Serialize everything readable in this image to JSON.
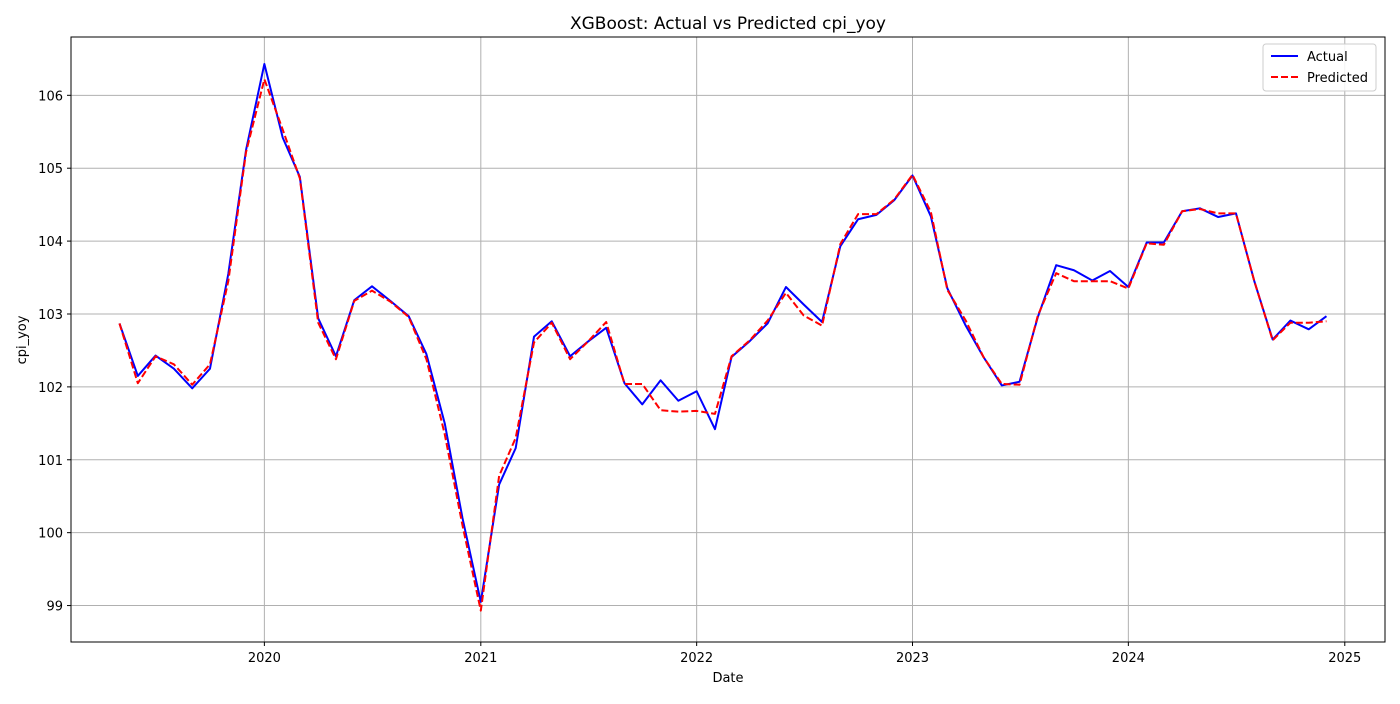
{
  "chart_data": {
    "type": "line",
    "title": "XGBoost: Actual vs Predicted cpi_yoy",
    "xlabel": "Date",
    "ylabel": "cpi_yoy",
    "x_tick_labels": [
      "2020",
      "2021",
      "2022",
      "2023",
      "2024",
      "2025"
    ],
    "y_tick_labels": [
      "99",
      "100",
      "101",
      "102",
      "103",
      "104",
      "105",
      "106"
    ],
    "xlim": [
      "2019-02-08",
      "2025-03-10"
    ],
    "ylim": [
      98.5,
      106.8
    ],
    "grid": true,
    "legend_position": "top-right",
    "x": [
      "2019-05-01",
      "2019-06-01",
      "2019-07-01",
      "2019-08-01",
      "2019-09-01",
      "2019-10-01",
      "2019-11-01",
      "2019-12-01",
      "2020-01-01",
      "2020-02-01",
      "2020-03-01",
      "2020-04-01",
      "2020-05-01",
      "2020-06-01",
      "2020-07-01",
      "2020-08-01",
      "2020-09-01",
      "2020-10-01",
      "2020-11-01",
      "2020-12-01",
      "2021-01-01",
      "2021-02-01",
      "2021-03-01",
      "2021-04-01",
      "2021-05-01",
      "2021-06-01",
      "2021-07-01",
      "2021-08-01",
      "2021-09-01",
      "2021-10-01",
      "2021-11-01",
      "2021-12-01",
      "2022-01-01",
      "2022-02-01",
      "2022-03-01",
      "2022-04-01",
      "2022-05-01",
      "2022-06-01",
      "2022-07-01",
      "2022-08-01",
      "2022-09-01",
      "2022-10-01",
      "2022-11-01",
      "2022-12-01",
      "2023-01-01",
      "2023-02-01",
      "2023-03-01",
      "2023-04-01",
      "2023-05-01",
      "2023-06-01",
      "2023-07-01",
      "2023-08-01",
      "2023-09-01",
      "2023-10-01",
      "2023-11-01",
      "2023-12-01",
      "2024-01-01",
      "2024-02-01",
      "2024-03-01",
      "2024-04-01",
      "2024-05-01",
      "2024-06-01",
      "2024-07-01",
      "2024-08-01",
      "2024-09-01",
      "2024-10-01",
      "2024-11-01",
      "2024-12-01"
    ],
    "series": [
      {
        "name": "Actual",
        "color": "#0000ff",
        "style": "solid",
        "values": [
          102.87,
          102.15,
          102.43,
          102.25,
          101.98,
          102.25,
          103.55,
          105.25,
          106.43,
          105.42,
          104.88,
          102.94,
          102.42,
          103.19,
          103.38,
          103.18,
          102.97,
          102.45,
          101.5,
          100.2,
          99.05,
          100.66,
          101.16,
          102.69,
          102.9,
          102.42,
          102.62,
          102.81,
          102.05,
          101.76,
          102.09,
          101.81,
          101.94,
          101.42,
          102.41,
          102.63,
          102.87,
          103.37,
          103.13,
          102.89,
          103.93,
          104.3,
          104.36,
          104.56,
          104.9,
          104.34,
          103.35,
          102.84,
          102.41,
          102.02,
          102.07,
          102.96,
          103.67,
          103.6,
          103.46,
          103.59,
          103.37,
          103.98,
          103.98,
          104.41,
          104.45,
          104.33,
          104.38,
          103.45,
          102.65,
          102.91,
          102.79,
          102.97
        ]
      },
      {
        "name": "Predicted",
        "color": "#ff0000",
        "style": "dashed",
        "values": [
          102.87,
          102.05,
          102.42,
          102.31,
          102.03,
          102.31,
          103.45,
          105.22,
          106.22,
          105.53,
          104.86,
          102.88,
          102.38,
          103.18,
          103.32,
          103.17,
          102.96,
          102.38,
          101.35,
          100.1,
          98.93,
          100.78,
          101.3,
          102.61,
          102.88,
          102.38,
          102.62,
          102.89,
          102.04,
          102.04,
          101.68,
          101.66,
          101.67,
          101.63,
          102.42,
          102.64,
          102.91,
          103.29,
          102.98,
          102.84,
          103.96,
          104.37,
          104.37,
          104.57,
          104.91,
          104.4,
          103.33,
          102.91,
          102.41,
          102.04,
          102.03,
          102.98,
          103.56,
          103.45,
          103.45,
          103.45,
          103.35,
          103.97,
          103.95,
          104.41,
          104.44,
          104.38,
          104.38,
          103.45,
          102.64,
          102.88,
          102.88,
          102.9
        ]
      }
    ]
  }
}
